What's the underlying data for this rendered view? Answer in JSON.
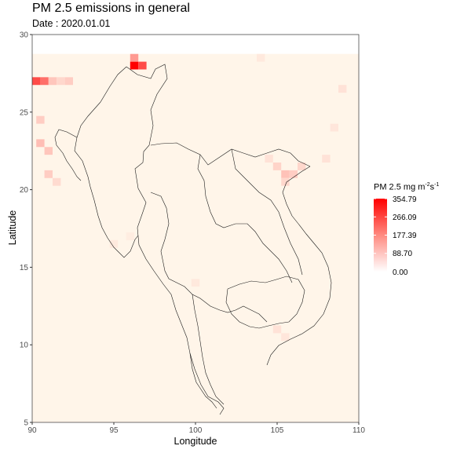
{
  "title": "PM 2.5 emissions in general",
  "subtitle": "Date : 2020.01.01",
  "chart_data": {
    "type": "heatmap",
    "xlabel": "Longitude",
    "ylabel": "Latitude",
    "xlim": [
      90,
      110
    ],
    "ylim": [
      5,
      30
    ],
    "x_ticks": [
      "90",
      "95",
      "100",
      "105",
      "110"
    ],
    "y_ticks": [
      "5",
      "10",
      "15",
      "20",
      "25",
      "30"
    ],
    "legend": {
      "title_prefix": "PM 2.5 mg m",
      "title_sup1": "-2",
      "title_mid": "s",
      "title_sup2": "-1",
      "labels": [
        "354.79",
        "266.09",
        "177.39",
        "88.70",
        "0.00"
      ],
      "values": [
        354.79,
        266.09,
        177.39,
        88.7,
        0.0
      ],
      "color_low": "#ffffff",
      "color_high": "#ff0000",
      "placement": "right"
    },
    "hotspots": [
      {
        "lon": 96.25,
        "lat": 28.0,
        "value": 354.79
      },
      {
        "lon": 96.75,
        "lat": 28.0,
        "value": 250
      },
      {
        "lon": 96.25,
        "lat": 28.5,
        "value": 140
      },
      {
        "lon": 90.25,
        "lat": 27.0,
        "value": 250
      },
      {
        "lon": 90.75,
        "lat": 27.0,
        "value": 200
      },
      {
        "lon": 91.25,
        "lat": 27.0,
        "value": 80
      },
      {
        "lon": 92.25,
        "lat": 27.0,
        "value": 70
      },
      {
        "lon": 91.75,
        "lat": 27.0,
        "value": 55
      },
      {
        "lon": 90.5,
        "lat": 23.0,
        "value": 90
      },
      {
        "lon": 91.0,
        "lat": 22.5,
        "value": 80
      },
      {
        "lon": 91.0,
        "lat": 21.0,
        "value": 70
      },
      {
        "lon": 90.5,
        "lat": 24.5,
        "value": 70
      },
      {
        "lon": 91.5,
        "lat": 20.5,
        "value": 50
      },
      {
        "lon": 105.5,
        "lat": 21.0,
        "value": 85
      },
      {
        "lon": 106.0,
        "lat": 21.0,
        "value": 70
      },
      {
        "lon": 105.0,
        "lat": 21.5,
        "value": 60
      },
      {
        "lon": 106.5,
        "lat": 21.5,
        "value": 55
      },
      {
        "lon": 105.5,
        "lat": 20.5,
        "value": 55
      },
      {
        "lon": 104.5,
        "lat": 22.0,
        "value": 40
      },
      {
        "lon": 108.0,
        "lat": 22.0,
        "value": 40
      },
      {
        "lon": 109.0,
        "lat": 26.5,
        "value": 40
      },
      {
        "lon": 108.5,
        "lat": 24.0,
        "value": 35
      },
      {
        "lon": 105.0,
        "lat": 11.0,
        "value": 40
      },
      {
        "lon": 105.5,
        "lat": 10.5,
        "value": 35
      },
      {
        "lon": 100.0,
        "lat": 14.0,
        "value": 30
      },
      {
        "lon": 104.0,
        "lat": 28.5,
        "value": 30
      },
      {
        "lon": 95.0,
        "lat": 16.5,
        "value": 30
      },
      {
        "lon": 96.0,
        "lat": 17.0,
        "value": 25
      }
    ],
    "background_value": 14
  }
}
